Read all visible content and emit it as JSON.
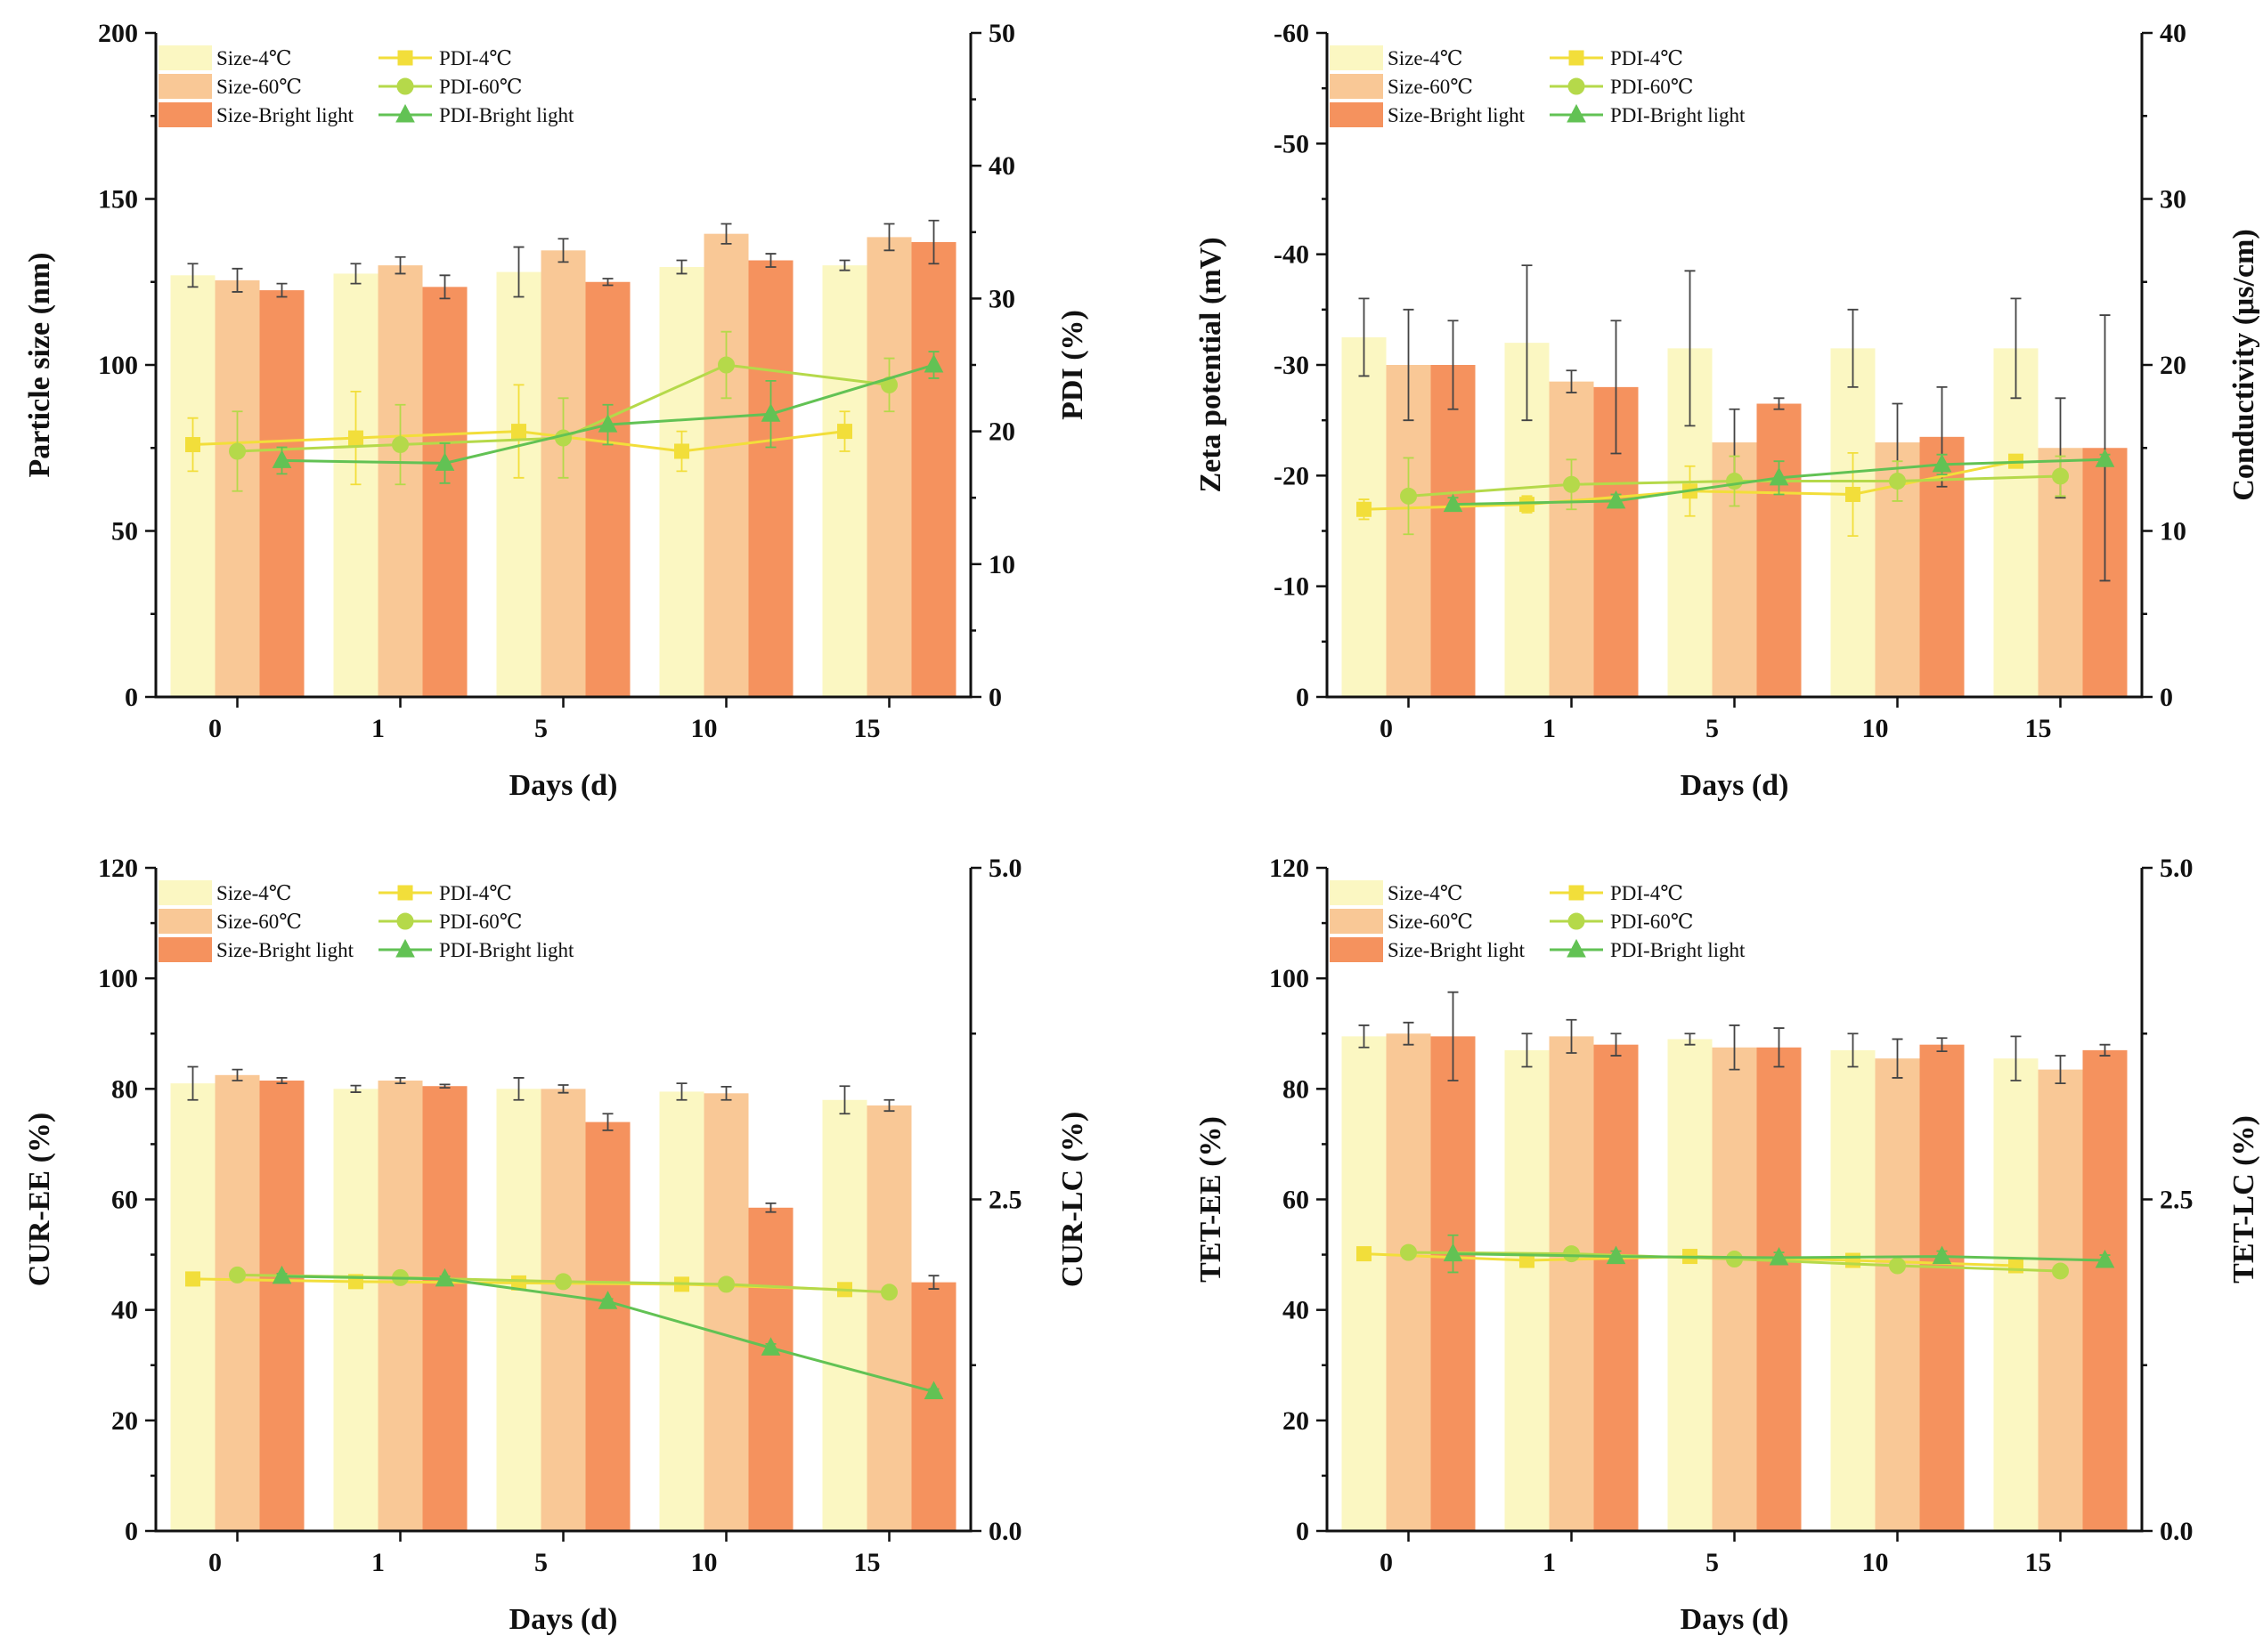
{
  "colors": {
    "bar_4c": "#FBF7C2",
    "bar_60c": "#F9C896",
    "bar_light": "#F5925E",
    "line_4c": "#F2DE3A",
    "line_60c": "#B5D94A",
    "line_light": "#62C254"
  },
  "chart_data": [
    {
      "type": "bar",
      "title": "",
      "xlabel": "Days (d)",
      "ylabel": "Particle size (nm)",
      "y2label": "PDI (%)",
      "categories": [
        "0",
        "1",
        "5",
        "10",
        "15"
      ],
      "ylim": [
        0,
        200
      ],
      "yticks": [
        "0",
        "50",
        "100",
        "150",
        "200"
      ],
      "y2lim": [
        0,
        50
      ],
      "y2ticks": [
        "0",
        "10",
        "20",
        "30",
        "40",
        "50"
      ],
      "bar_series": [
        {
          "name": "Size-4℃",
          "values": [
            127,
            127.5,
            128,
            129.5,
            130
          ],
          "errors": [
            3.5,
            3,
            7.5,
            2,
            1.5
          ]
        },
        {
          "name": "Size-60℃",
          "values": [
            125.5,
            130,
            134.5,
            139.5,
            138.5
          ],
          "errors": [
            3.5,
            2.5,
            3.5,
            3,
            4
          ]
        },
        {
          "name": "Size-Bright light",
          "values": [
            122.5,
            123.5,
            125,
            131.5,
            137
          ],
          "errors": [
            2,
            3.5,
            1,
            2,
            6.5
          ]
        }
      ],
      "line_series": [
        {
          "name": "PDI-4℃",
          "values": [
            19,
            19.5,
            20,
            18.5,
            20
          ],
          "errors": [
            2,
            3.5,
            3.5,
            1.5,
            1.5
          ]
        },
        {
          "name": "PDI-60℃",
          "values": [
            18.5,
            19,
            19.5,
            25,
            23.5
          ],
          "errors": [
            3,
            3,
            3,
            2.5,
            2
          ]
        },
        {
          "name": "PDI-Bright light",
          "values": [
            17.8,
            17.6,
            20.5,
            21.3,
            25
          ],
          "errors": [
            1,
            1.5,
            1.5,
            2.5,
            1
          ]
        }
      ]
    },
    {
      "type": "bar",
      "title": "",
      "xlabel": "Days (d)",
      "ylabel": "Zeta potential (mV)",
      "y2label": "Conductivity (μs/cm)",
      "categories": [
        "0",
        "1",
        "5",
        "10",
        "15"
      ],
      "ylim": [
        0,
        -60
      ],
      "yticks": [
        "0",
        "-10",
        "-20",
        "-30",
        "-40",
        "-50",
        "-60"
      ],
      "y2lim": [
        0,
        40
      ],
      "y2ticks": [
        "0",
        "10",
        "20",
        "30",
        "40"
      ],
      "bar_series": [
        {
          "name": "Size-4℃",
          "values": [
            -32.5,
            -32,
            -31.5,
            -31.5,
            -31.5
          ],
          "errors": [
            3.5,
            7,
            7,
            3.5,
            4.5
          ]
        },
        {
          "name": "Size-60℃",
          "values": [
            -30,
            -28.5,
            -23,
            -23,
            -22.5
          ],
          "errors": [
            5,
            1,
            3,
            3.5,
            4.5
          ]
        },
        {
          "name": "Size-Bright light",
          "values": [
            -30,
            -28,
            -26.5,
            -23.5,
            -22.5
          ],
          "errors": [
            4,
            6,
            0.5,
            4.5,
            12
          ]
        }
      ],
      "line_series": [
        {
          "name": "PDI-4℃",
          "values": [
            11.3,
            11.6,
            12.4,
            12.2,
            14.2
          ],
          "errors": [
            0.6,
            0.5,
            1.5,
            2.5,
            0.3
          ]
        },
        {
          "name": "PDI-60℃",
          "values": [
            12.1,
            12.8,
            13.0,
            13.0,
            13.3
          ],
          "errors": [
            2.3,
            1.5,
            1.5,
            1.2,
            1.2
          ]
        },
        {
          "name": "PDI-Bright light",
          "values": [
            11.6,
            11.8,
            13.2,
            14.0,
            14.3
          ],
          "errors": [
            0.4,
            0.4,
            1,
            0.6,
            0.3
          ]
        }
      ]
    },
    {
      "type": "bar",
      "title": "",
      "xlabel": "Days (d)",
      "ylabel": "CUR-EE (%)",
      "y2label": "CUR-LC (%)",
      "categories": [
        "0",
        "1",
        "5",
        "10",
        "15"
      ],
      "ylim": [
        0,
        120
      ],
      "yticks": [
        "0",
        "20",
        "40",
        "60",
        "80",
        "100",
        "120"
      ],
      "y2lim": [
        0,
        5
      ],
      "y2ticks": [
        "0.0",
        "2.5",
        "5.0"
      ],
      "bar_series": [
        {
          "name": "Size-4℃",
          "values": [
            81,
            80,
            80,
            79.5,
            78
          ],
          "errors": [
            3,
            0.6,
            2,
            1.5,
            2.5
          ]
        },
        {
          "name": "Size-60℃",
          "values": [
            82.5,
            81.5,
            80,
            79.2,
            77
          ],
          "errors": [
            1,
            0.5,
            0.7,
            1.2,
            1
          ]
        },
        {
          "name": "Size-Bright light",
          "values": [
            81.5,
            80.5,
            74,
            58.5,
            45
          ],
          "errors": [
            0.5,
            0.3,
            1.5,
            0.8,
            1.2
          ]
        }
      ],
      "line_series": [
        {
          "name": "PDI-4℃",
          "values": [
            1.9,
            1.88,
            1.87,
            1.86,
            1.82
          ],
          "errors": [
            0.05,
            0.03,
            0.03,
            0.03,
            0.03
          ]
        },
        {
          "name": "PDI-60℃",
          "values": [
            1.93,
            1.91,
            1.88,
            1.86,
            1.8
          ],
          "errors": [
            0.03,
            0.03,
            0.03,
            0.03,
            0.03
          ]
        },
        {
          "name": "PDI-Bright light",
          "values": [
            1.92,
            1.9,
            1.73,
            1.38,
            1.05
          ],
          "errors": [
            0.02,
            0.02,
            0.02,
            0.03,
            0.02
          ]
        }
      ]
    },
    {
      "type": "bar",
      "title": "",
      "xlabel": "Days (d)",
      "ylabel": "TET-EE (%)",
      "y2label": "TET-LC (%)",
      "categories": [
        "0",
        "1",
        "5",
        "10",
        "15"
      ],
      "ylim": [
        0,
        120
      ],
      "yticks": [
        "0",
        "20",
        "40",
        "60",
        "80",
        "100",
        "120"
      ],
      "y2lim": [
        0,
        5
      ],
      "y2ticks": [
        "0.0",
        "2.5",
        "5.0"
      ],
      "bar_series": [
        {
          "name": "Size-4℃",
          "values": [
            89.5,
            87,
            89,
            87,
            85.5
          ],
          "errors": [
            2,
            3,
            1,
            3,
            4
          ]
        },
        {
          "name": "Size-60℃",
          "values": [
            90,
            89.5,
            87.5,
            85.5,
            83.5
          ],
          "errors": [
            2,
            3,
            4,
            3.5,
            2.5
          ]
        },
        {
          "name": "Size-Bright light",
          "values": [
            89.5,
            88,
            87.5,
            88,
            87
          ],
          "errors": [
            8,
            2,
            3.5,
            1.2,
            1
          ]
        }
      ],
      "line_series": [
        {
          "name": "PDI-4℃",
          "values": [
            2.09,
            2.04,
            2.07,
            2.04,
            2.0
          ],
          "errors": [
            0.04,
            0.04,
            0.04,
            0.04,
            0.05
          ]
        },
        {
          "name": "PDI-60℃",
          "values": [
            2.1,
            2.09,
            2.05,
            2.0,
            1.96
          ],
          "errors": [
            0.04,
            0.04,
            0.04,
            0.04,
            0.04
          ]
        },
        {
          "name": "PDI-Bright light",
          "values": [
            2.09,
            2.07,
            2.06,
            2.07,
            2.04
          ],
          "errors": [
            0.14,
            0.04,
            0.04,
            0.04,
            0.04
          ]
        }
      ]
    }
  ]
}
